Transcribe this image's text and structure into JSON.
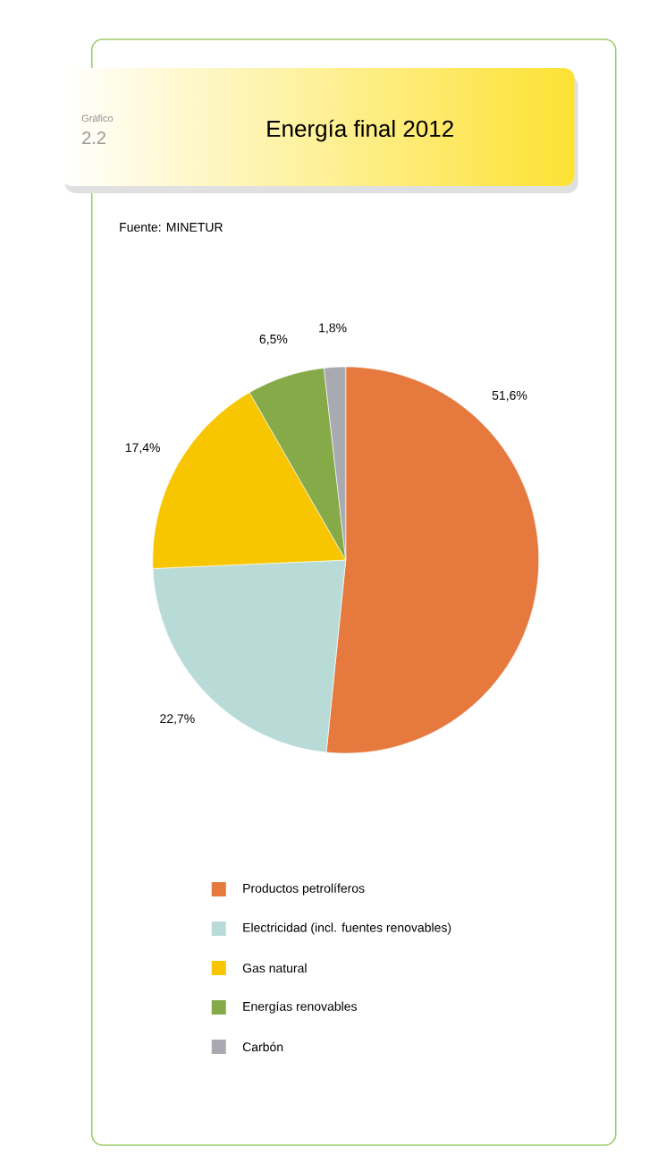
{
  "chart_data": {
    "type": "pie",
    "title": "Energía final 2012",
    "annotations": [
      "Gráfico",
      "2.2",
      "Fuente: MINETUR"
    ],
    "categories": [
      "Productos petrolíferos",
      "Electricidad (incl. fuentes renovables)",
      "Gas natural",
      "Energías renovables",
      "Carbón"
    ],
    "values": [
      51.6,
      22.7,
      17.4,
      6.5,
      1.8
    ],
    "colors": [
      "#e5793e",
      "#b8dbd8",
      "#f7c600",
      "#86aa48",
      "#a9a9b2"
    ],
    "value_labels": [
      "51,6%",
      "22,7%",
      "17,4%",
      "6,5%",
      "1,8%"
    ],
    "legend": "bottom"
  }
}
